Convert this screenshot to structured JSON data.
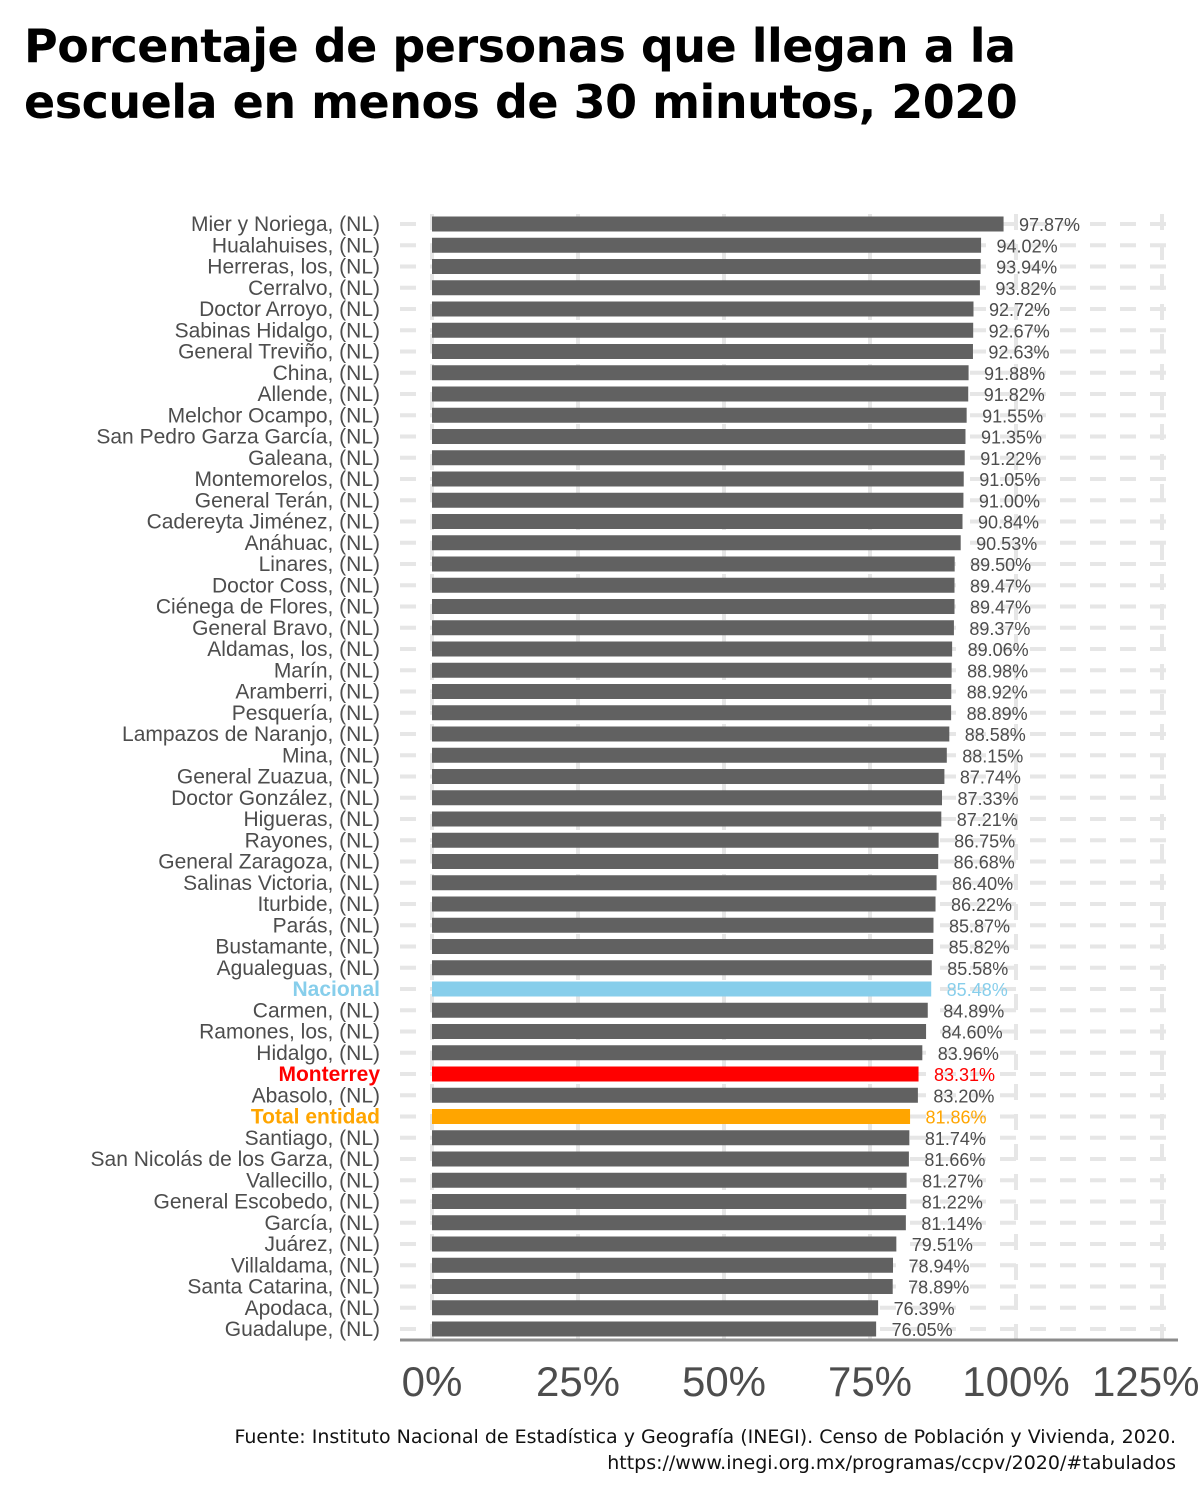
{
  "title": "Porcentaje de personas que llegan a la escuela en menos de 30 minutos, 2020",
  "source": "Fuente: Instituto Nacional de Estadística y Geografía (INEGI). Censo de Población y Vivienda, 2020. https://www.inegi.org.mx/programas/ccpv/2020/#tabulados",
  "colors": {
    "default": "#616161",
    "Nacional": "#87ceeb",
    "Monterrey": "#ff0000",
    "Total entidad": "#ffa500"
  },
  "chart_data": {
    "type": "bar",
    "orientation": "horizontal",
    "title": "Porcentaje de personas que llegan a la escuela en menos de 30 minutos, 2020",
    "xlim": [
      0,
      125
    ],
    "xticks": [
      "0%",
      "25%",
      "50%",
      "75%",
      "100%",
      "125%"
    ],
    "grid": true,
    "categories": [
      "Mier y Noriega, (NL)",
      "Hualahuises, (NL)",
      "Herreras, los, (NL)",
      "Cerralvo, (NL)",
      "Doctor Arroyo, (NL)",
      "Sabinas Hidalgo, (NL)",
      "General Treviño, (NL)",
      "China, (NL)",
      "Allende, (NL)",
      "Melchor Ocampo, (NL)",
      "San Pedro Garza García, (NL)",
      "Galeana, (NL)",
      "Montemorelos, (NL)",
      "General Terán, (NL)",
      "Cadereyta Jiménez, (NL)",
      "Anáhuac, (NL)",
      "Linares, (NL)",
      "Doctor Coss, (NL)",
      "Ciénega de Flores, (NL)",
      "General Bravo, (NL)",
      "Aldamas, los, (NL)",
      "Marín, (NL)",
      "Aramberri, (NL)",
      "Pesquería, (NL)",
      "Lampazos de Naranjo, (NL)",
      "Mina, (NL)",
      "General Zuazua, (NL)",
      "Doctor González, (NL)",
      "Higueras, (NL)",
      "Rayones, (NL)",
      "General Zaragoza, (NL)",
      "Salinas Victoria, (NL)",
      "Iturbide, (NL)",
      "Parás, (NL)",
      "Bustamante, (NL)",
      "Agualeguas, (NL)",
      "Nacional",
      "Carmen, (NL)",
      "Ramones, los, (NL)",
      "Hidalgo, (NL)",
      "Monterrey",
      "Abasolo, (NL)",
      "Total entidad",
      "Santiago, (NL)",
      "San Nicolás de los Garza, (NL)",
      "Vallecillo, (NL)",
      "General Escobedo, (NL)",
      "García, (NL)",
      "Juárez, (NL)",
      "Villaldama, (NL)",
      "Santa Catarina, (NL)",
      "Apodaca, (NL)",
      "Guadalupe, (NL)"
    ],
    "values": [
      97.87,
      94.02,
      93.94,
      93.82,
      92.72,
      92.67,
      92.63,
      91.88,
      91.82,
      91.55,
      91.35,
      91.22,
      91.05,
      91.0,
      90.84,
      90.53,
      89.5,
      89.47,
      89.47,
      89.37,
      89.06,
      88.98,
      88.92,
      88.89,
      88.58,
      88.15,
      87.74,
      87.33,
      87.21,
      86.75,
      86.68,
      86.4,
      86.22,
      85.87,
      85.82,
      85.58,
      85.48,
      84.89,
      84.6,
      83.96,
      83.31,
      83.2,
      81.86,
      81.74,
      81.66,
      81.27,
      81.22,
      81.14,
      79.51,
      78.94,
      78.89,
      76.39,
      76.05
    ],
    "value_labels": [
      "97.87%",
      "94.02%",
      "93.94%",
      "93.82%",
      "92.72%",
      "92.67%",
      "92.63%",
      "91.88%",
      "91.82%",
      "91.55%",
      "91.35%",
      "91.22%",
      "91.05%",
      "91.00%",
      "90.84%",
      "90.53%",
      "89.50%",
      "89.47%",
      "89.47%",
      "89.37%",
      "89.06%",
      "88.98%",
      "88.92%",
      "88.89%",
      "88.58%",
      "88.15%",
      "87.74%",
      "87.33%",
      "87.21%",
      "86.75%",
      "86.68%",
      "86.40%",
      "86.22%",
      "85.87%",
      "85.82%",
      "85.58%",
      "85.48%",
      "84.89%",
      "84.60%",
      "83.96%",
      "83.31%",
      "83.20%",
      "81.86%",
      "81.74%",
      "81.66%",
      "81.27%",
      "81.22%",
      "81.14%",
      "79.51%",
      "78.94%",
      "78.89%",
      "76.39%",
      "76.05%"
    ],
    "highlighted": [
      "Nacional",
      "Monterrey",
      "Total entidad"
    ]
  }
}
